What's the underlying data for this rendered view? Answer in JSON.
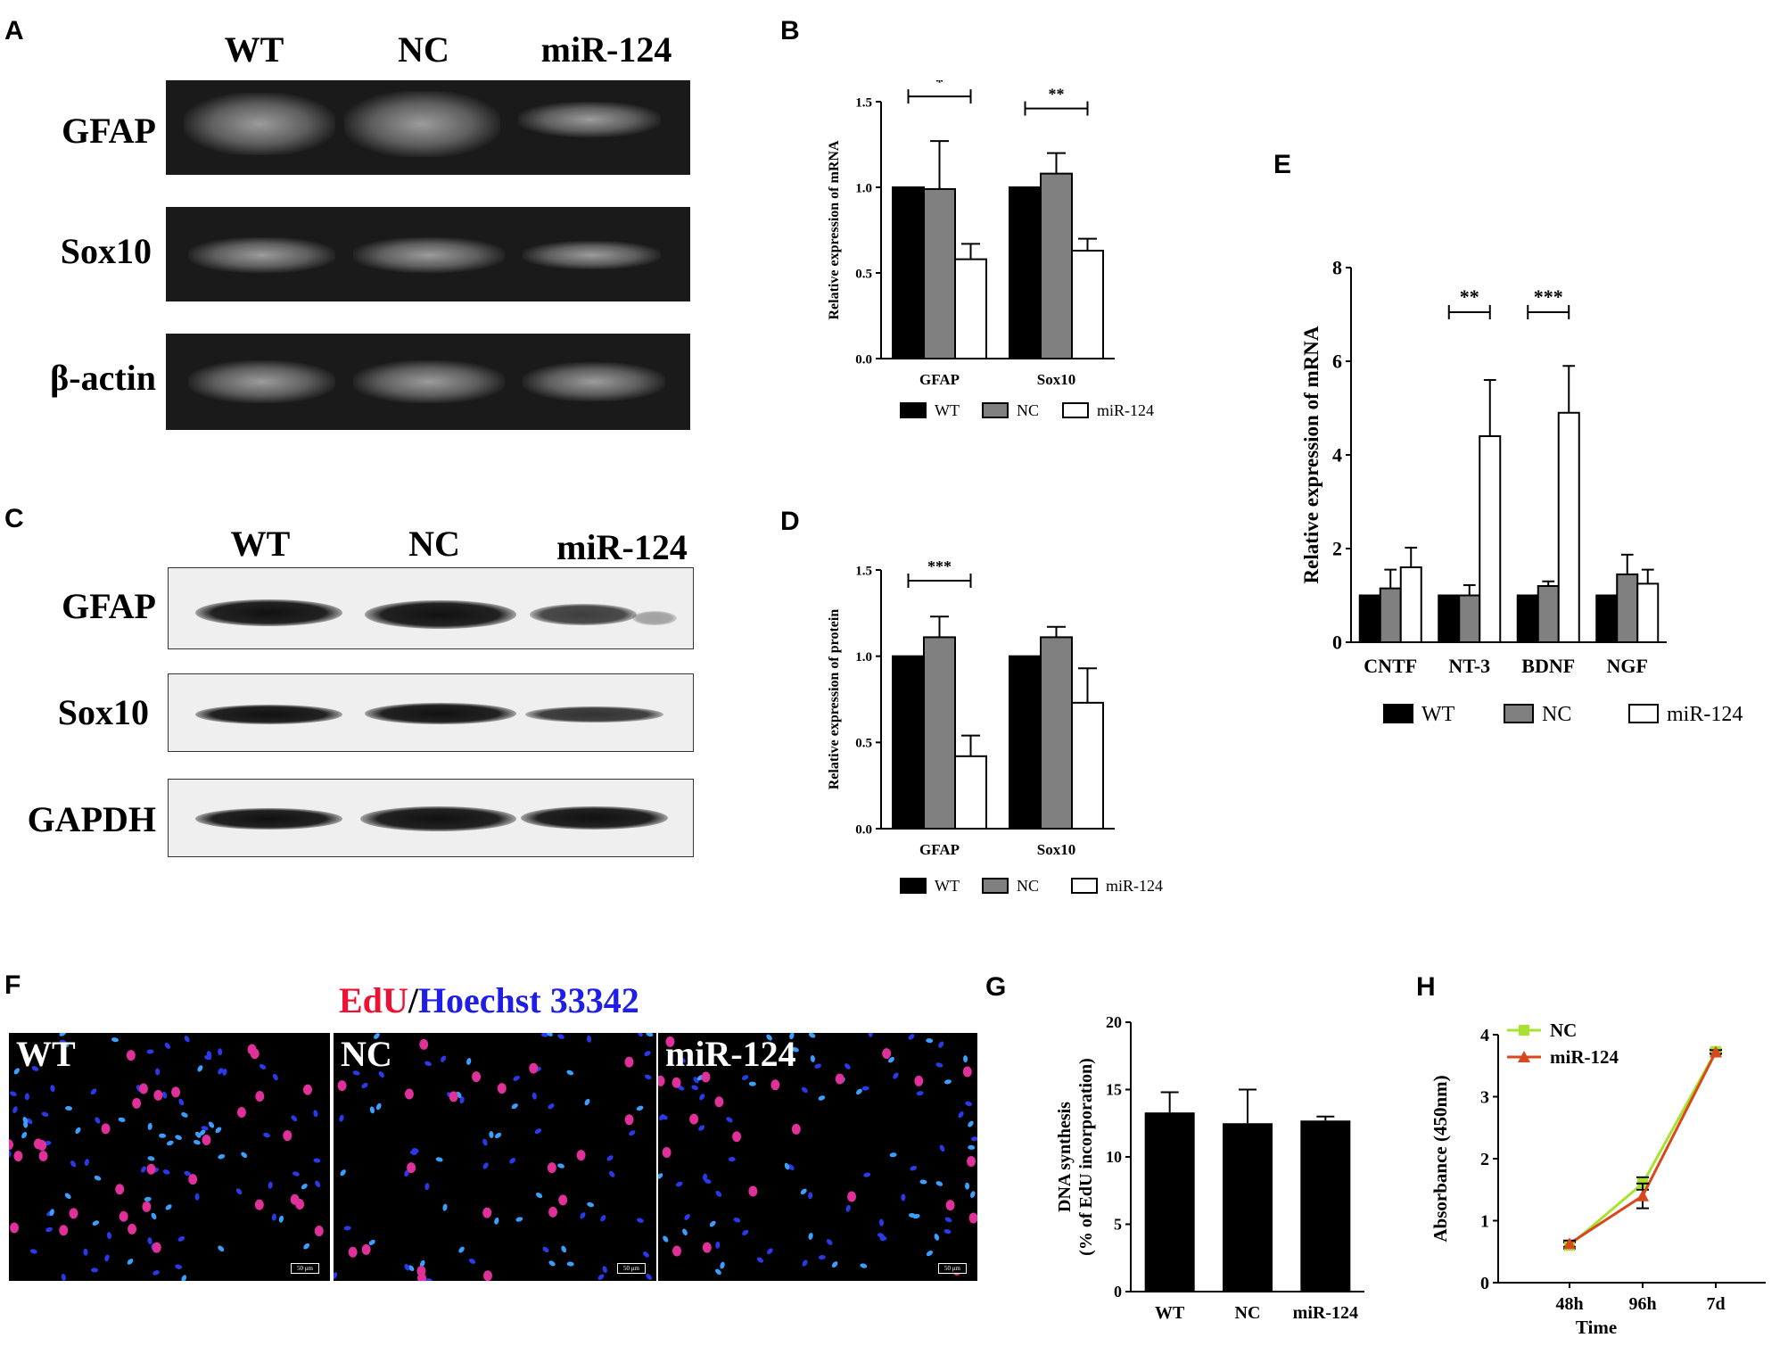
{
  "panels": {
    "A": "A",
    "B": "B",
    "C": "C",
    "D": "D",
    "E": "E",
    "F": "F",
    "G": "G",
    "H": "H"
  },
  "gel_A": {
    "lanes": [
      "WT",
      "NC",
      "miR-124"
    ],
    "rows": [
      "GFAP",
      "Sox10",
      "β-actin"
    ]
  },
  "blot_C": {
    "lanes": [
      "WT",
      "NC",
      "miR-124"
    ],
    "rows": [
      "GFAP",
      "Sox10",
      "GAPDH"
    ]
  },
  "fluor_F": {
    "title_part1": "EdU",
    "title_sep": "/",
    "title_part2": "Hoechst 33342",
    "panels": [
      "WT",
      "NC",
      "miR-124"
    ],
    "scalebar": "50 μm"
  },
  "colors": {
    "WT": "#000000",
    "NC": "#808080",
    "miR-124": "#ffffff",
    "NC_line": "#a6e22e",
    "miR124_line": "#d9471e",
    "edu": "#ee1133",
    "hoechst": "#1e1ee6"
  },
  "chart_data": [
    {
      "id": "B",
      "type": "bar",
      "title": "",
      "ylabel": "Relative expression of mRNA",
      "xlabel": "",
      "categories": [
        "GFAP",
        "Sox10"
      ],
      "ylim": [
        0,
        1.5
      ],
      "yticks": [
        "0.0",
        "0.5",
        "1.0",
        "1.5"
      ],
      "series": [
        {
          "name": "WT",
          "values": [
            1.0,
            1.0
          ],
          "errors": [
            0,
            0
          ]
        },
        {
          "name": "NC",
          "values": [
            0.99,
            1.08
          ],
          "errors": [
            0.28,
            0.12
          ]
        },
        {
          "name": "miR-124",
          "values": [
            0.58,
            0.63
          ],
          "errors": [
            0.09,
            0.07
          ]
        }
      ],
      "significance": [
        {
          "category": "GFAP",
          "label": "*"
        },
        {
          "category": "Sox10",
          "label": "**"
        }
      ],
      "legend": "bottom"
    },
    {
      "id": "D",
      "type": "bar",
      "title": "",
      "ylabel": "Relative expression of protein",
      "xlabel": "",
      "categories": [
        "GFAP",
        "Sox10"
      ],
      "ylim": [
        0,
        1.5
      ],
      "yticks": [
        "0.0",
        "0.5",
        "1.0",
        "1.5"
      ],
      "series": [
        {
          "name": "WT",
          "values": [
            1.0,
            1.0
          ],
          "errors": [
            0,
            0
          ]
        },
        {
          "name": "NC",
          "values": [
            1.11,
            1.11
          ],
          "errors": [
            0.12,
            0.06
          ]
        },
        {
          "name": "miR-124",
          "values": [
            0.42,
            0.73
          ],
          "errors": [
            0.12,
            0.2
          ]
        }
      ],
      "significance": [
        {
          "category": "GFAP",
          "label": "***"
        }
      ],
      "legend": "bottom"
    },
    {
      "id": "E",
      "type": "bar",
      "title": "",
      "ylabel": "Relative expression of mRNA",
      "xlabel": "",
      "categories": [
        "CNTF",
        "NT-3",
        "BDNF",
        "NGF"
      ],
      "ylim": [
        0,
        8
      ],
      "yticks": [
        "0",
        "2",
        "4",
        "6",
        "8"
      ],
      "series": [
        {
          "name": "WT",
          "values": [
            1.0,
            1.0,
            1.0,
            1.0
          ],
          "errors": [
            0,
            0,
            0,
            0
          ]
        },
        {
          "name": "NC",
          "values": [
            1.15,
            1.0,
            1.2,
            1.45
          ],
          "errors": [
            0.4,
            0.22,
            0.1,
            0.42
          ]
        },
        {
          "name": "miR-124",
          "values": [
            1.6,
            4.4,
            4.9,
            1.25
          ],
          "errors": [
            0.42,
            1.2,
            1.0,
            0.3
          ]
        }
      ],
      "significance": [
        {
          "category": "NT-3",
          "label": "**"
        },
        {
          "category": "BDNF",
          "label": "***"
        }
      ],
      "legend": "bottom"
    },
    {
      "id": "G",
      "type": "bar",
      "title": "",
      "ylabel_line1": "DNA synthesis",
      "ylabel_line2": "(% of EdU incorporation)",
      "xlabel": "",
      "categories": [
        "WT",
        "NC",
        "miR-124"
      ],
      "ylim": [
        0,
        20
      ],
      "yticks": [
        "0",
        "5",
        "10",
        "15",
        "20"
      ],
      "values": [
        13.3,
        12.5,
        12.7
      ],
      "errors": [
        1.5,
        2.5,
        0.3
      ]
    },
    {
      "id": "H",
      "type": "line",
      "title": "",
      "ylabel": "Absorbance (450nm)",
      "xlabel": "Time",
      "categories": [
        "48h",
        "96h",
        "7d"
      ],
      "ylim": [
        0,
        4
      ],
      "yticks": [
        "0",
        "1",
        "2",
        "3",
        "4"
      ],
      "series": [
        {
          "name": "NC",
          "values": [
            0.6,
            1.6,
            3.73
          ],
          "errors": [
            0.05,
            0.1,
            0.03
          ]
        },
        {
          "name": "miR-124",
          "values": [
            0.63,
            1.4,
            3.72
          ],
          "errors": [
            0.05,
            0.2,
            0.03
          ]
        }
      ],
      "legend": "top-left"
    }
  ]
}
